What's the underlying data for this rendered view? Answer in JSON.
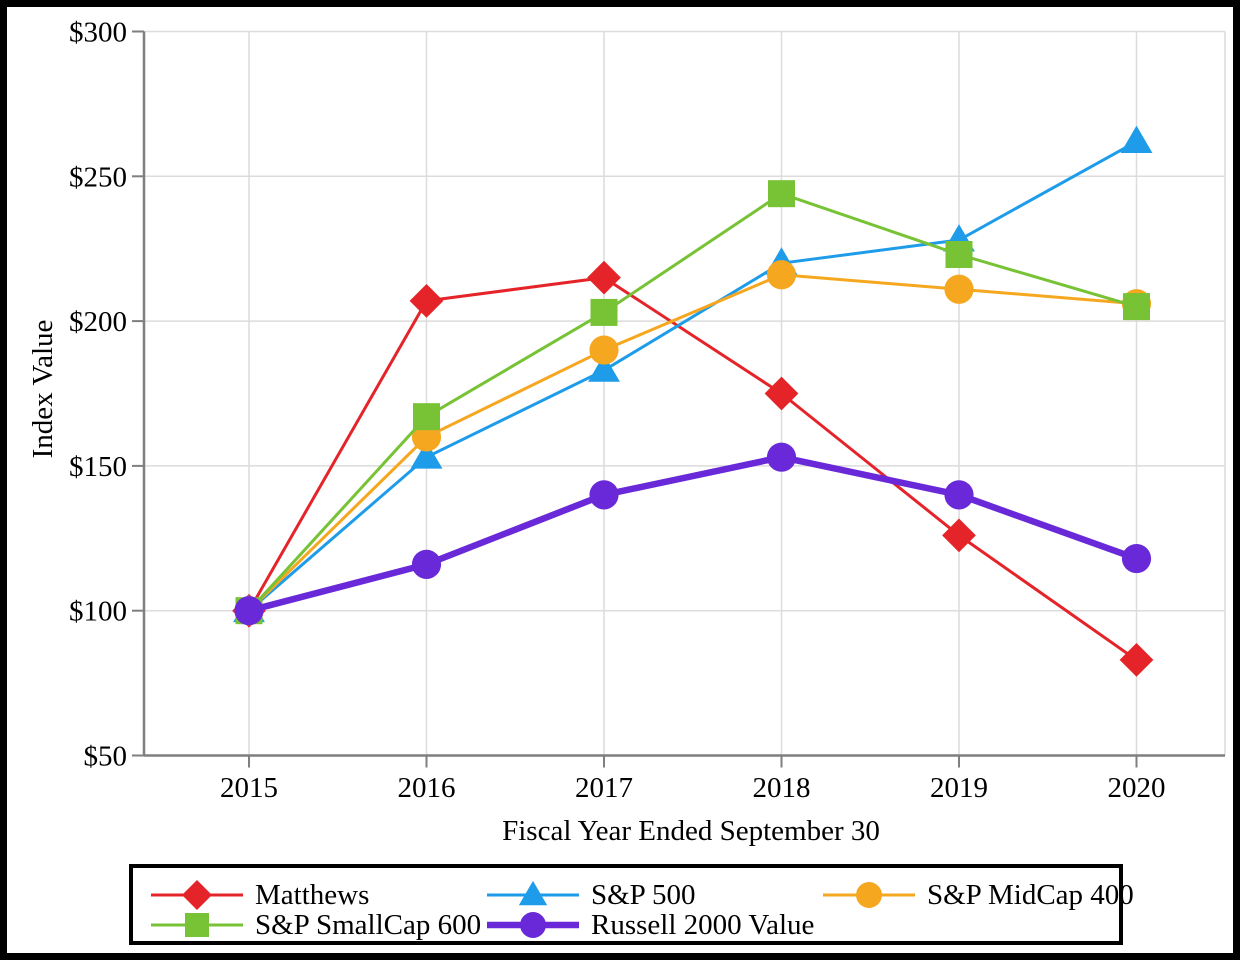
{
  "chart_data": {
    "type": "line",
    "title": "",
    "xlabel": "Fiscal Year Ended September 30",
    "ylabel": "Index Value",
    "x_tick_labels": [
      "2015",
      "2016",
      "2017",
      "2018",
      "2019",
      "2020"
    ],
    "y_ticks": [
      50,
      100,
      150,
      200,
      250,
      300
    ],
    "y_tick_labels": [
      "$50",
      "$100",
      "$150",
      "$200",
      "$250",
      "$300"
    ],
    "ylim": [
      50,
      300
    ],
    "grid": true,
    "legend_position": "bottom",
    "series": [
      {
        "name": "Matthews",
        "marker": "diamond",
        "color": "#e5242a",
        "line_width": 3,
        "values": [
          100,
          207,
          215,
          175,
          126,
          83
        ]
      },
      {
        "name": "S&P 500",
        "marker": "triangle",
        "color": "#1e9ce9",
        "line_width": 3,
        "values": [
          100,
          153,
          183,
          220,
          228,
          262
        ]
      },
      {
        "name": "S&P MidCap 400",
        "marker": "circle",
        "color": "#f6a720",
        "line_width": 3,
        "values": [
          100,
          160,
          190,
          216,
          211,
          206
        ]
      },
      {
        "name": "S&P SmallCap 600",
        "marker": "square",
        "color": "#77c235",
        "line_width": 3,
        "values": [
          100,
          167,
          203,
          244,
          223,
          205
        ]
      },
      {
        "name": "Russell 2000 Value",
        "marker": "circle",
        "color": "#6929d8",
        "line_width": 6.5,
        "values": [
          100,
          116,
          140,
          153,
          140,
          118
        ]
      }
    ]
  },
  "style_colors": {
    "gridline": "#dcdcdc",
    "axis": "#7f7f7f",
    "text": "#000000",
    "border": "#000000",
    "background": "#ffffff"
  }
}
